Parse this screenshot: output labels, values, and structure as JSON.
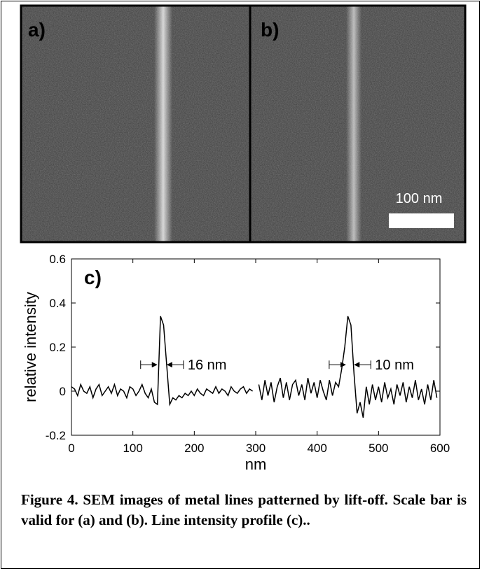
{
  "panels": {
    "a": "a)",
    "b": "b)",
    "scale_bar": "100 nm"
  },
  "chart_data": {
    "type": "line",
    "label": "c)",
    "xlabel": "nm",
    "ylabel": "relative intensity",
    "xlim": [
      0,
      600
    ],
    "xticks": [
      0,
      100,
      200,
      300,
      400,
      500,
      600
    ],
    "ylim": [
      -0.2,
      0.6
    ],
    "yticks": [
      -0.2,
      0,
      0.2,
      0.4,
      0.6
    ],
    "annotations": [
      "16 nm",
      "10 nm"
    ],
    "color": "#000000",
    "x": [
      0,
      5,
      10,
      15,
      20,
      25,
      30,
      35,
      40,
      45,
      50,
      55,
      60,
      65,
      70,
      75,
      80,
      85,
      90,
      95,
      100,
      105,
      110,
      115,
      120,
      125,
      130,
      135,
      140,
      145,
      150,
      155,
      160,
      165,
      170,
      175,
      180,
      185,
      190,
      195,
      200,
      205,
      210,
      215,
      220,
      225,
      230,
      235,
      240,
      245,
      250,
      255,
      260,
      265,
      270,
      275,
      280,
      285,
      290,
      295,
      300,
      305,
      310,
      315,
      320,
      325,
      330,
      335,
      340,
      345,
      350,
      355,
      360,
      365,
      370,
      375,
      380,
      385,
      390,
      395,
      400,
      405,
      410,
      415,
      420,
      425,
      430,
      435,
      440,
      445,
      450,
      455,
      460,
      465,
      470,
      475,
      480,
      485,
      490,
      495,
      500,
      505,
      510,
      515,
      520,
      525,
      530,
      535,
      540,
      545,
      550,
      555,
      560,
      565,
      570,
      575,
      580,
      585,
      590,
      595
    ],
    "values": [
      0.02,
      0.01,
      -0.02,
      0.03,
      0.0,
      -0.01,
      0.02,
      -0.03,
      0.01,
      0.03,
      -0.02,
      0.0,
      0.02,
      -0.01,
      0.03,
      -0.02,
      0.01,
      0.0,
      -0.03,
      0.02,
      0.01,
      -0.02,
      0.0,
      0.03,
      -0.01,
      -0.03,
      0.01,
      -0.05,
      -0.06,
      0.34,
      0.3,
      0.12,
      -0.06,
      -0.03,
      -0.04,
      -0.02,
      -0.03,
      -0.01,
      -0.02,
      0.0,
      -0.02,
      0.01,
      -0.01,
      -0.02,
      0.01,
      0.0,
      -0.01,
      0.02,
      -0.01,
      0.01,
      0.0,
      -0.02,
      0.02,
      0.0,
      -0.01,
      0.01,
      0.02,
      -0.01,
      0.01,
      0.0,
      null,
      0.03,
      -0.04,
      0.05,
      -0.02,
      0.04,
      -0.05,
      0.02,
      0.06,
      -0.03,
      0.04,
      -0.04,
      0.03,
      0.05,
      -0.02,
      0.03,
      -0.04,
      0.06,
      -0.01,
      0.04,
      -0.03,
      0.05,
      0.0,
      -0.04,
      0.05,
      -0.02,
      0.04,
      0.02,
      0.1,
      0.2,
      0.34,
      0.3,
      0.08,
      -0.1,
      -0.05,
      -0.12,
      0.02,
      -0.06,
      0.03,
      -0.04,
      0.02,
      -0.05,
      0.04,
      -0.03,
      0.01,
      -0.06,
      0.03,
      -0.02,
      0.04,
      -0.05,
      0.02,
      -0.03,
      0.05,
      -0.04,
      0.01,
      -0.06,
      0.03,
      -0.04,
      0.05,
      -0.03
    ]
  },
  "caption": {
    "text": "Figure 4.  SEM images of metal lines patterned by lift-off. Scale bar is valid for (a) and (b). Line intensity profile (c).."
  }
}
